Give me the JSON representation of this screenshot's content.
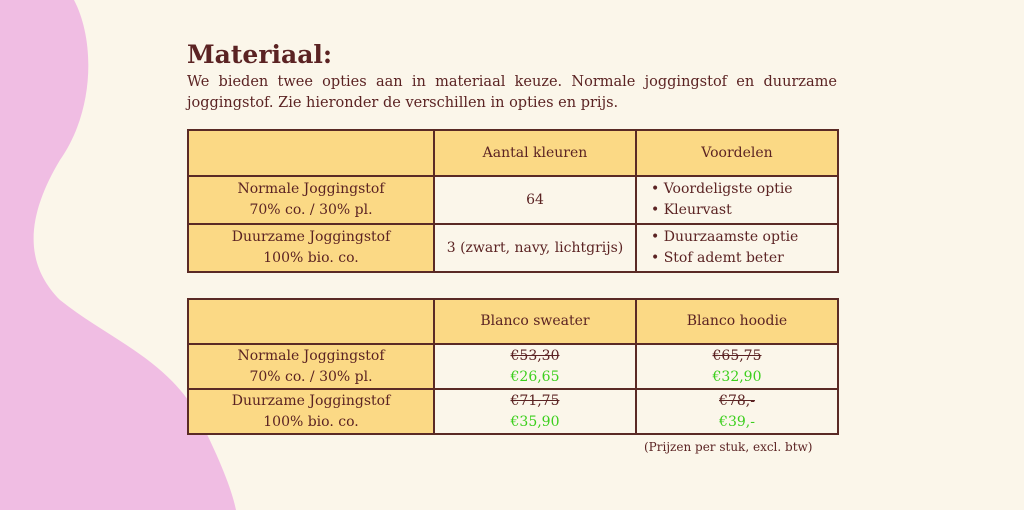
{
  "colors": {
    "background": "#FBF6EA",
    "blob": "#F0BDE3",
    "header": "#FBD985",
    "border": "#5a2a25",
    "text": "#5b2323",
    "sale": "#3ccf1d"
  },
  "title": "Materiaal:",
  "intro": "We bieden twee opties aan in materiaal keuze. Normale joggingstof en duurzame joggingstof. Zie hieronder de verschillen in opties en prijs.",
  "table1": {
    "headers": [
      "",
      "Aantal kleuren",
      "Voordelen"
    ],
    "rows": [
      {
        "name": "Normale Joggingstof",
        "sub": "70% co. /  30% pl.",
        "colors": "64",
        "benefits": [
          "Voordeligste optie",
          "Kleurvast"
        ]
      },
      {
        "name": "Duurzame Joggingstof",
        "sub": "100% bio. co.",
        "colors": "3 (zwart, navy, lichtgrijs)",
        "benefits": [
          "Duurzaamste optie",
          "Stof ademt beter"
        ]
      }
    ]
  },
  "table2": {
    "headers": [
      "",
      "Blanco sweater",
      "Blanco hoodie"
    ],
    "rows": [
      {
        "name": "Normale Joggingstof",
        "sub": "70% co. /  30% pl.",
        "sweater_old": "€53,30",
        "sweater_new": "€26,65",
        "hoodie_old": "€65,75",
        "hoodie_new": "€32,90"
      },
      {
        "name": "Duurzame Joggingstof",
        "sub": "100% bio. co.",
        "sweater_old": "€71,75",
        "sweater_new": "€35,90",
        "hoodie_old": "€78,-",
        "hoodie_new": "€39,-"
      }
    ]
  },
  "note": "(Prijzen per stuk, excl. btw)"
}
